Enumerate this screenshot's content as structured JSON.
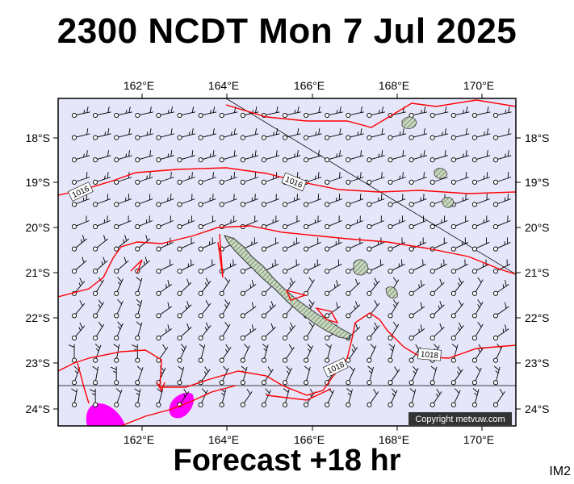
{
  "header": {
    "title": "2300 NCDT Mon 7 Jul 2025"
  },
  "footer": {
    "forecast": "Forecast +18 hr",
    "tag": "IM2"
  },
  "map": {
    "background": "#e6e6fb",
    "isobar_color": "#ff0000",
    "precip_color": "#ff00ff",
    "lon_labels": [
      "162°E",
      "164°E",
      "166°E",
      "168°E",
      "170°E"
    ],
    "lat_labels": [
      "18°S",
      "19°S",
      "20°S",
      "21°S",
      "22°S",
      "23°S",
      "24°S"
    ],
    "isobar_labels": [
      "1016",
      "1016",
      "1018",
      "1018"
    ],
    "copyright": "Copyright metvuw.com"
  }
}
